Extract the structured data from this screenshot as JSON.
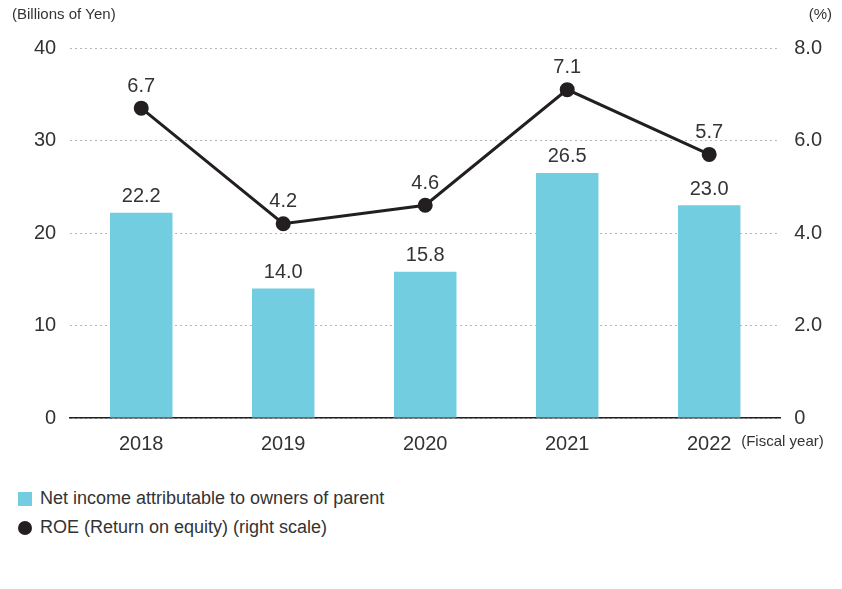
{
  "chart_data": {
    "type": "bar",
    "categories": [
      "2018",
      "2019",
      "2020",
      "2021",
      "2022"
    ],
    "xlabel": "(Fiscal year)",
    "ylabel": "(Billions of Yen)",
    "y2label": "(%)",
    "ylim": [
      0,
      40
    ],
    "yticks": [
      0,
      10,
      20,
      30,
      40
    ],
    "y2lim": [
      0,
      8
    ],
    "y2ticks": [
      0,
      {
        "value": 2,
        "label": "2.0"
      },
      {
        "value": 4,
        "label": "4.0"
      },
      {
        "value": 6,
        "label": "6.0"
      },
      {
        "value": 8,
        "label": "8.0"
      }
    ],
    "grid": true,
    "legend": "lower left",
    "data_labels": true,
    "series": [
      {
        "name": "Net income attributable to owners of parent",
        "type": "bar",
        "color": "#72cde0",
        "values": [
          22.2,
          14.0,
          15.8,
          26.5,
          23.0
        ],
        "value_labels": [
          "22.2",
          "14.0",
          "15.8",
          "26.5",
          "23.0"
        ]
      },
      {
        "name": "ROE (Return on equity) (right scale)",
        "type": "line",
        "axis": "y2",
        "color": "#231f20",
        "marker": "circle",
        "line_style": "solid",
        "values": [
          6.7,
          4.2,
          4.6,
          7.1,
          5.7
        ]
      }
    ]
  }
}
